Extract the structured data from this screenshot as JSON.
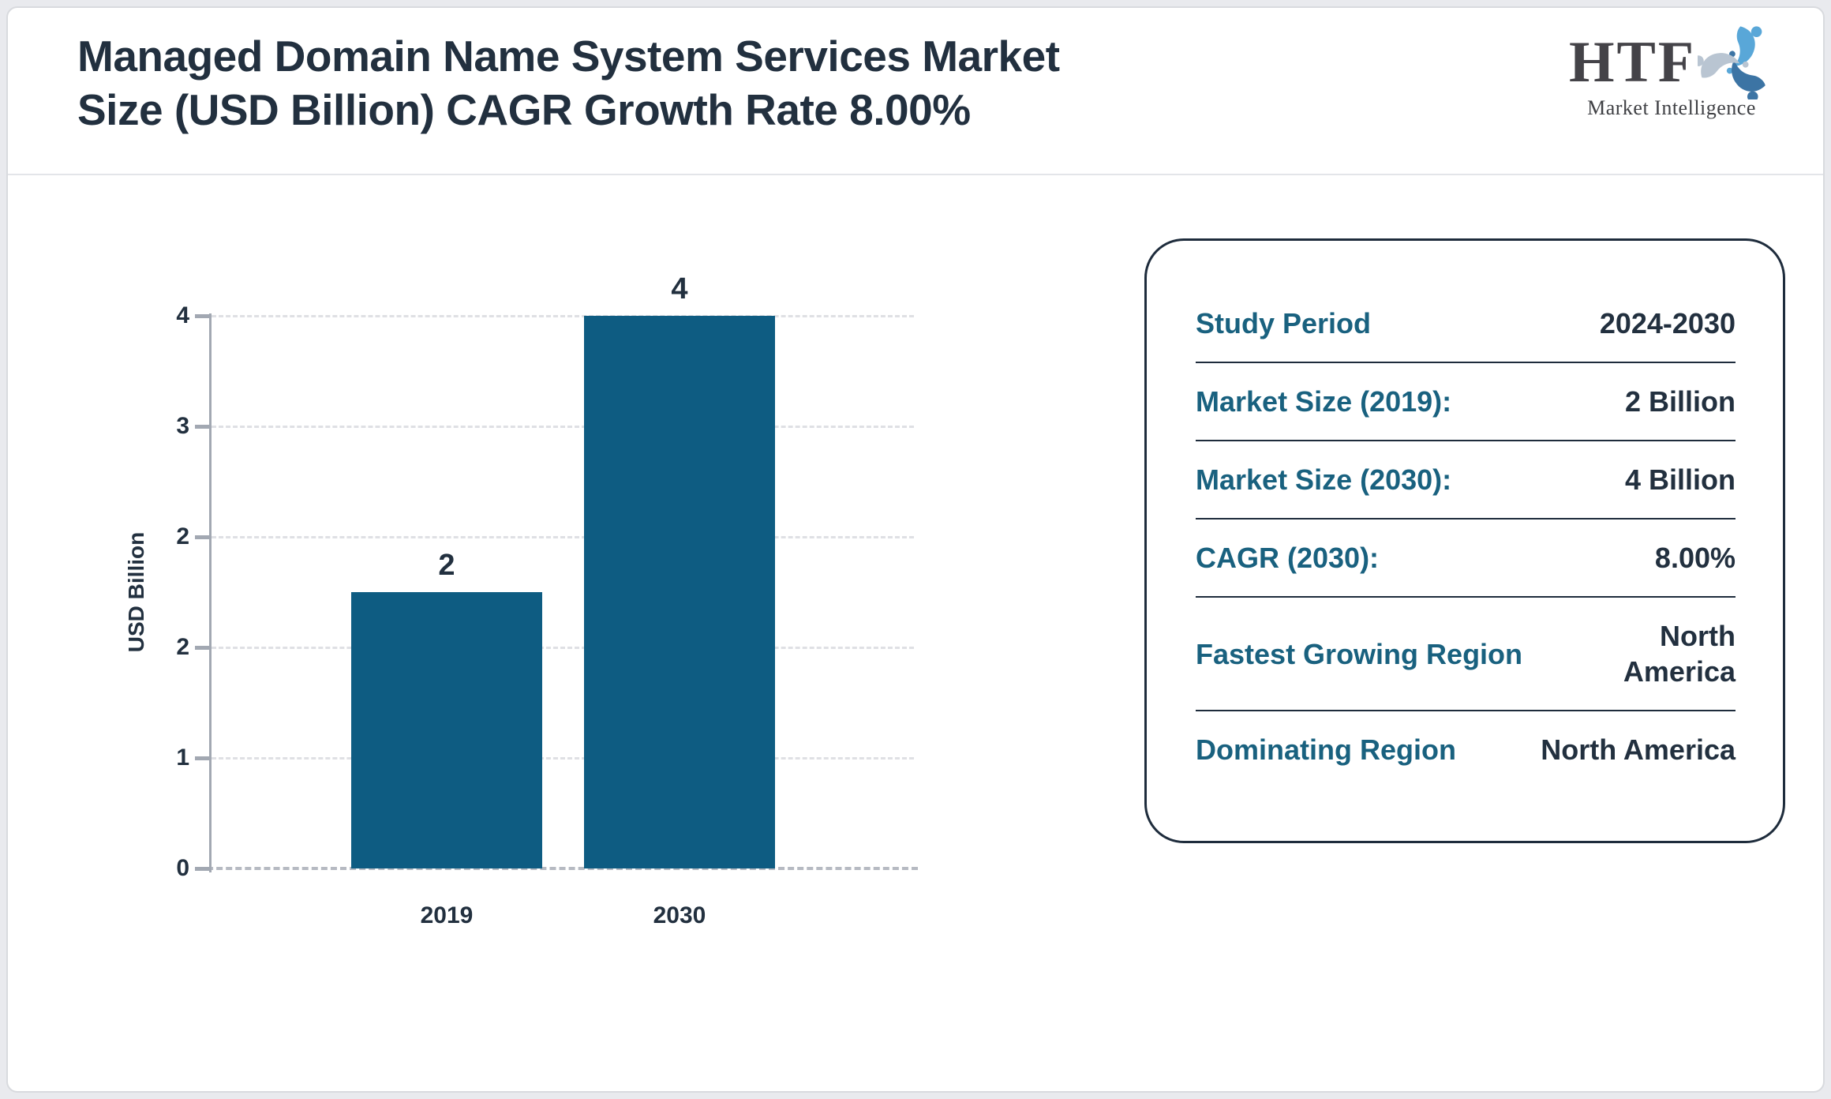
{
  "page": {
    "title": "Managed Domain Name System Services Market\nSize (USD Billion) CAGR Growth Rate 8.00%"
  },
  "logo": {
    "text": "HTF",
    "subtext": "Market Intelligence",
    "mark_colors": [
      "#59a7d8",
      "#3c74a4",
      "#b9c5d2"
    ]
  },
  "chart_data": {
    "type": "bar",
    "categories": [
      "2019",
      "2030"
    ],
    "values": [
      2,
      4
    ],
    "data_labels": [
      "2",
      "4"
    ],
    "title": "",
    "xlabel": "",
    "ylabel": "USD Billion",
    "ylim": [
      0,
      4
    ],
    "ytick_labels_bottom_to_top": [
      "0",
      "1",
      "2",
      "2",
      "3",
      "4"
    ],
    "grid": "horizontal-dashed",
    "legend": "none",
    "bar_color": "#0e5c82"
  },
  "info_card": {
    "rows": [
      {
        "label": "Study Period",
        "value": "2024-2030"
      },
      {
        "label": "Market Size (2019):",
        "value": "2 Billion"
      },
      {
        "label": "Market Size (2030):",
        "value": "4 Billion"
      },
      {
        "label": "CAGR (2030):",
        "value": "8.00%"
      },
      {
        "label": "Fastest Growing Region",
        "value": "North America"
      },
      {
        "label": "Dominating Region",
        "value": "North America"
      }
    ]
  },
  "colors": {
    "accent_teal": "#19617f",
    "text_navy": "#22303f",
    "bar": "#0e5c82",
    "axis_gray": "#a2a8b2"
  }
}
